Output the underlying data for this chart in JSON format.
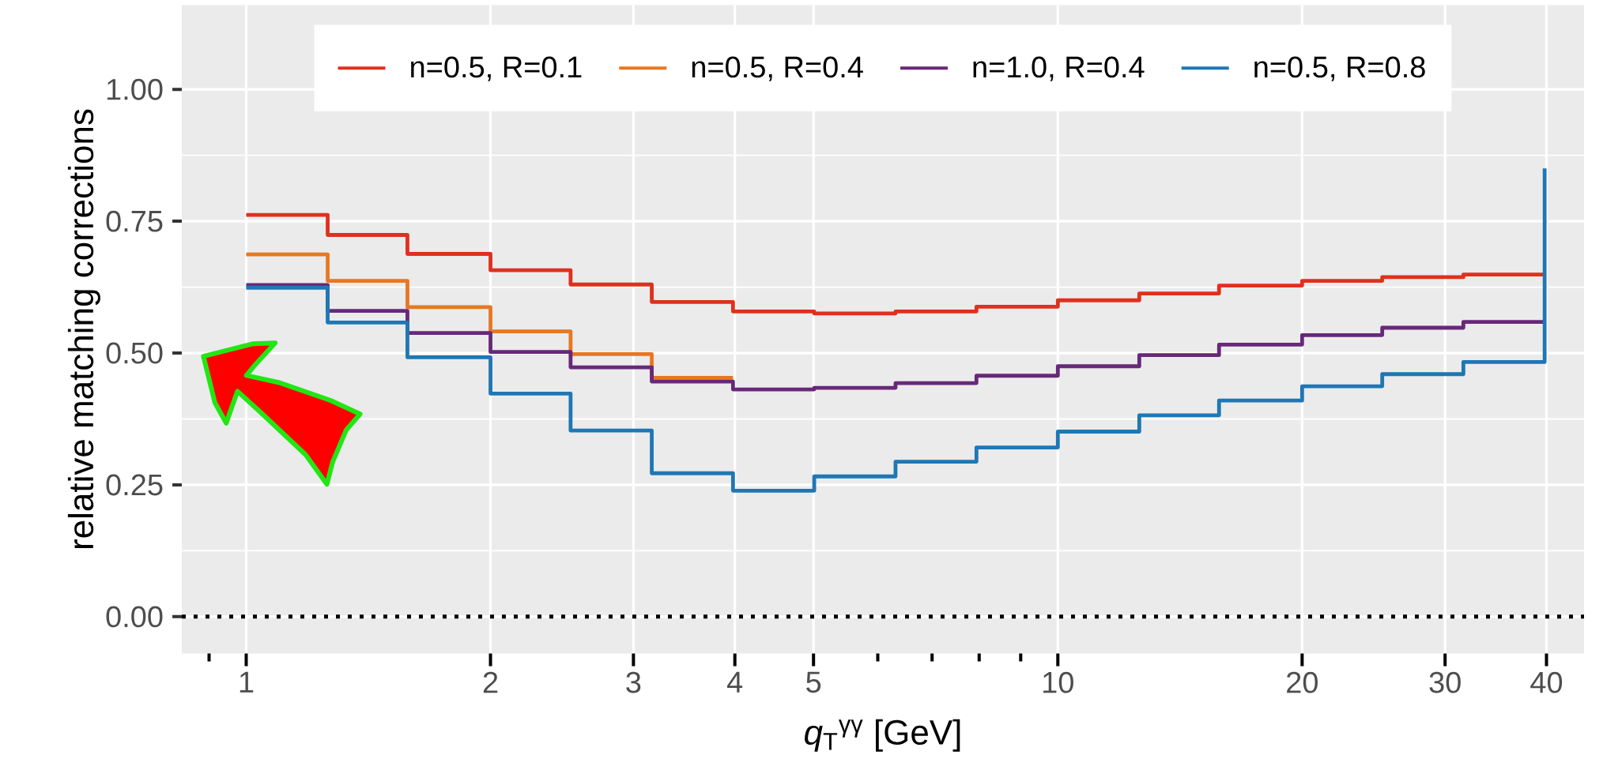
{
  "chart_data": {
    "type": "step",
    "xlabel": "*q*$_{T}$$^{γγ}$ [GeV]",
    "ylabel": "relative matching corrections",
    "log": "x",
    "grid": true,
    "legend": "top",
    "line_style": "solid",
    "marker": "none",
    "xlim": [
      0.833,
      44.5
    ],
    "ylim": [
      -0.07,
      1.16
    ],
    "xticks": [
      {
        "value": 0.9,
        "label": null
      },
      1,
      2,
      3,
      4,
      5,
      {
        "value": 6,
        "label": null
      },
      {
        "value": 7,
        "label": null
      },
      {
        "value": 8,
        "label": null
      },
      {
        "value": 9,
        "label": null
      },
      10,
      20,
      30,
      40
    ],
    "yticks": [
      {
        "value": 0,
        "label": "0.00"
      },
      {
        "value": 0.25,
        "label": "0.25"
      },
      {
        "value": 0.5,
        "label": "0.50"
      },
      {
        "value": 0.75,
        "label": "0.75"
      },
      {
        "value": 1,
        "label": "1.00"
      }
    ],
    "ref_lines": [
      {
        "axis": "y",
        "value": 0,
        "color": "#000000",
        "line_style": "dotted"
      }
    ],
    "series": [
      {
        "name": "n=0.5, R=0.1",
        "color": "#e0301e",
        "x": [
          1,
          1.26,
          1.58,
          2,
          2.51,
          3.16,
          3.98,
          5.01,
          6.31,
          7.94,
          10,
          12.6,
          15.8,
          20,
          25.1,
          31.6,
          39.8
        ],
        "values": [
          0.762,
          0.724,
          0.688,
          0.657,
          0.63,
          0.597,
          0.579,
          0.575,
          0.579,
          0.588,
          0.6,
          0.613,
          0.628,
          0.637,
          0.644,
          0.649,
          0.649
        ]
      },
      {
        "name": "n=0.5, R=0.4",
        "color": "#e87722",
        "x": [
          1,
          1.26,
          1.58,
          2,
          2.51,
          3.16,
          3.98
        ],
        "values": [
          0.687,
          0.637,
          0.587,
          0.541,
          0.498,
          0.453,
          0.453
        ]
      },
      {
        "name": "n=1.0, R=0.4",
        "color": "#68287a",
        "x": [
          1,
          1.26,
          1.58,
          2,
          2.51,
          3.16,
          3.98,
          5.01,
          6.31,
          7.94,
          10,
          12.6,
          15.8,
          20,
          25.1,
          31.6,
          39.8
        ],
        "values": [
          0.629,
          0.58,
          0.538,
          0.502,
          0.473,
          0.446,
          0.431,
          0.434,
          0.443,
          0.457,
          0.475,
          0.496,
          0.516,
          0.534,
          0.548,
          0.559,
          0.559
        ]
      },
      {
        "name": "n=0.5, R=0.8",
        "color": "#1f77b4",
        "x": [
          1,
          1.26,
          1.58,
          2,
          2.51,
          3.16,
          3.98,
          5.01,
          6.31,
          7.94,
          10,
          12.6,
          15.8,
          20,
          25.1,
          31.6,
          39.8
        ],
        "values": [
          0.624,
          0.558,
          0.492,
          0.423,
          0.353,
          0.272,
          0.239,
          0.266,
          0.294,
          0.321,
          0.351,
          0.382,
          0.41,
          0.437,
          0.46,
          0.483,
          0.85
        ]
      }
    ]
  }
}
